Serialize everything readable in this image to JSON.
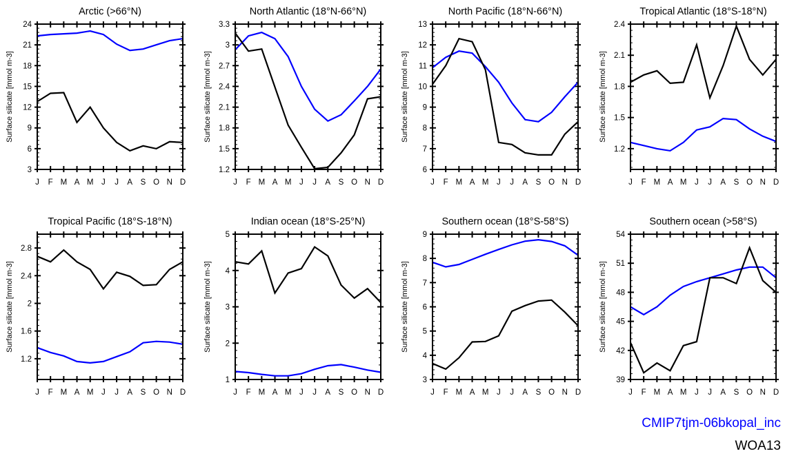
{
  "figure": {
    "ylabel": "Surface silicate [mmol m-3]",
    "months": [
      "J",
      "F",
      "M",
      "A",
      "M",
      "J",
      "J",
      "A",
      "S",
      "O",
      "N",
      "D"
    ],
    "legend": [
      {
        "label": "CMIP7tjm-06bkopal_inc",
        "color": "#0000ff"
      },
      {
        "label": "WOA13",
        "color": "#000000"
      }
    ]
  },
  "chart_data": [
    {
      "type": "line",
      "title": "Arctic (>66°N)",
      "xlabel": "",
      "ylabel": "Surface silicate [mmol m-3]",
      "categories": [
        "J",
        "F",
        "M",
        "A",
        "M",
        "J",
        "J",
        "A",
        "S",
        "O",
        "N",
        "D"
      ],
      "ylim": [
        3,
        24
      ],
      "yticks": [
        3,
        6,
        9,
        12,
        15,
        18,
        21,
        24
      ],
      "ytick_labels": [
        "3",
        "6",
        "9",
        "12",
        "15",
        "18",
        "21",
        "24"
      ],
      "series": [
        {
          "name": "CMIP7tjm-06bkopal_inc",
          "color": "#0000ff",
          "values": [
            22.3,
            22.5,
            22.6,
            22.7,
            23.0,
            22.5,
            21.1,
            20.2,
            20.4,
            21.0,
            21.6,
            21.9
          ]
        },
        {
          "name": "WOA13",
          "color": "#000000",
          "values": [
            12.8,
            14.0,
            14.1,
            9.8,
            12.0,
            9.0,
            6.9,
            5.7,
            6.4,
            6.0,
            7.0,
            6.9
          ]
        }
      ]
    },
    {
      "type": "line",
      "title": "North Atlantic (18°N-66°N)",
      "xlabel": "",
      "ylabel": "Surface silicate [mmol m-3]",
      "categories": [
        "J",
        "F",
        "M",
        "A",
        "M",
        "J",
        "J",
        "A",
        "S",
        "O",
        "N",
        "D"
      ],
      "ylim": [
        1.2,
        3.3
      ],
      "yticks": [
        1.2,
        1.5,
        1.8,
        2.1,
        2.4,
        2.7,
        3.0,
        3.3
      ],
      "ytick_labels": [
        "1.2",
        "1.5",
        "1.8",
        "2.1",
        "2.4",
        "2.7",
        "3",
        "3.3"
      ],
      "series": [
        {
          "name": "CMIP7tjm-06bkopal_inc",
          "color": "#0000ff",
          "values": [
            2.93,
            3.13,
            3.18,
            3.09,
            2.83,
            2.4,
            2.07,
            1.9,
            1.99,
            2.19,
            2.4,
            2.65
          ]
        },
        {
          "name": "WOA13",
          "color": "#000000",
          "values": [
            3.17,
            2.91,
            2.94,
            2.39,
            1.84,
            1.52,
            1.21,
            1.23,
            1.44,
            1.7,
            2.22,
            2.25
          ]
        }
      ]
    },
    {
      "type": "line",
      "title": "North Pacific (18°N-66°N)",
      "xlabel": "",
      "ylabel": "Surface silicate [mmol m-3]",
      "categories": [
        "J",
        "F",
        "M",
        "A",
        "M",
        "J",
        "J",
        "A",
        "S",
        "O",
        "N",
        "D"
      ],
      "ylim": [
        6,
        13
      ],
      "yticks": [
        6,
        7,
        8,
        9,
        10,
        11,
        12,
        13
      ],
      "ytick_labels": [
        "6",
        "7",
        "8",
        "9",
        "10",
        "11",
        "12",
        "13"
      ],
      "series": [
        {
          "name": "CMIP7tjm-06bkopal_inc",
          "color": "#0000ff",
          "values": [
            10.9,
            11.4,
            11.7,
            11.6,
            10.95,
            10.2,
            9.2,
            8.4,
            8.3,
            8.75,
            9.5,
            10.2
          ]
        },
        {
          "name": "WOA13",
          "color": "#000000",
          "values": [
            10.1,
            11.0,
            12.3,
            12.15,
            10.8,
            7.3,
            7.2,
            6.8,
            6.7,
            6.7,
            7.7,
            8.3
          ]
        }
      ]
    },
    {
      "type": "line",
      "title": "Tropical Atlantic (18°S-18°N)",
      "xlabel": "",
      "ylabel": "Surface silicate [mmol m-3]",
      "categories": [
        "J",
        "F",
        "M",
        "A",
        "M",
        "J",
        "J",
        "A",
        "S",
        "O",
        "N",
        "D"
      ],
      "ylim": [
        1.0,
        2.4
      ],
      "yticks": [
        1.2,
        1.5,
        1.8,
        2.1,
        2.4
      ],
      "ytick_labels": [
        "1.2",
        "1.5",
        "1.8",
        "2.1",
        "2.4"
      ],
      "series": [
        {
          "name": "CMIP7tjm-06bkopal_inc",
          "color": "#0000ff",
          "values": [
            1.26,
            1.23,
            1.2,
            1.18,
            1.26,
            1.38,
            1.41,
            1.49,
            1.48,
            1.39,
            1.32,
            1.27
          ]
        },
        {
          "name": "WOA13",
          "color": "#000000",
          "values": [
            1.84,
            1.91,
            1.95,
            1.83,
            1.84,
            2.2,
            1.69,
            2.0,
            2.38,
            2.06,
            1.91,
            2.06
          ]
        }
      ]
    },
    {
      "type": "line",
      "title": "Tropical Pacific (18°S-18°N)",
      "xlabel": "",
      "ylabel": "Surface silicate [mmol m-3]",
      "categories": [
        "J",
        "F",
        "M",
        "A",
        "M",
        "J",
        "J",
        "A",
        "S",
        "O",
        "N",
        "D"
      ],
      "ylim": [
        0.9,
        3.0
      ],
      "yticks": [
        1.2,
        1.6,
        2.0,
        2.4,
        2.8
      ],
      "ytick_labels": [
        "1.2",
        "1.6",
        "2",
        "2.4",
        "2.8"
      ],
      "series": [
        {
          "name": "CMIP7tjm-06bkopal_inc",
          "color": "#0000ff",
          "values": [
            1.36,
            1.29,
            1.24,
            1.16,
            1.14,
            1.16,
            1.23,
            1.3,
            1.43,
            1.45,
            1.44,
            1.41
          ]
        },
        {
          "name": "WOA13",
          "color": "#000000",
          "values": [
            2.68,
            2.6,
            2.77,
            2.6,
            2.49,
            2.21,
            2.45,
            2.39,
            2.26,
            2.27,
            2.49,
            2.6
          ]
        }
      ]
    },
    {
      "type": "line",
      "title": "Indian ocean (18°S-25°N)",
      "xlabel": "",
      "ylabel": "Surface silicate [mmol m-3]",
      "categories": [
        "J",
        "F",
        "M",
        "A",
        "M",
        "J",
        "J",
        "A",
        "S",
        "O",
        "N",
        "D"
      ],
      "ylim": [
        1,
        5
      ],
      "yticks": [
        1,
        2,
        3,
        4,
        5
      ],
      "ytick_labels": [
        "1",
        "2",
        "3",
        "4",
        "5"
      ],
      "series": [
        {
          "name": "CMIP7tjm-06bkopal_inc",
          "color": "#0000ff",
          "values": [
            1.22,
            1.19,
            1.14,
            1.1,
            1.1,
            1.16,
            1.28,
            1.38,
            1.41,
            1.34,
            1.26,
            1.2
          ]
        },
        {
          "name": "WOA13",
          "color": "#000000",
          "values": [
            4.24,
            4.18,
            4.54,
            3.38,
            3.93,
            4.05,
            4.65,
            4.4,
            3.6,
            3.24,
            3.5,
            3.12
          ]
        }
      ]
    },
    {
      "type": "line",
      "title": "Southern ocean (18°S-58°S)",
      "xlabel": "",
      "ylabel": "Surface silicate [mmol m-3]",
      "categories": [
        "J",
        "F",
        "M",
        "A",
        "M",
        "J",
        "J",
        "A",
        "S",
        "O",
        "N",
        "D"
      ],
      "ylim": [
        3,
        9
      ],
      "yticks": [
        3,
        4,
        5,
        6,
        7,
        8,
        9
      ],
      "ytick_labels": [
        "3",
        "4",
        "5",
        "6",
        "7",
        "8",
        "9"
      ],
      "series": [
        {
          "name": "CMIP7tjm-06bkopal_inc",
          "color": "#0000ff",
          "values": [
            7.84,
            7.65,
            7.75,
            7.96,
            8.17,
            8.37,
            8.56,
            8.71,
            8.77,
            8.7,
            8.52,
            8.13
          ]
        },
        {
          "name": "WOA13",
          "color": "#000000",
          "values": [
            3.66,
            3.43,
            3.9,
            4.55,
            4.57,
            4.8,
            5.82,
            6.05,
            6.24,
            6.28,
            5.78,
            5.22
          ]
        }
      ]
    },
    {
      "type": "line",
      "title": "Southern ocean (>58°S)",
      "xlabel": "",
      "ylabel": "Surface silicate [mmol m-3]",
      "categories": [
        "J",
        "F",
        "M",
        "A",
        "M",
        "J",
        "J",
        "A",
        "S",
        "O",
        "N",
        "D"
      ],
      "ylim": [
        39,
        54
      ],
      "yticks": [
        39,
        42,
        45,
        48,
        51,
        54
      ],
      "ytick_labels": [
        "39",
        "42",
        "45",
        "48",
        "51",
        "54"
      ],
      "series": [
        {
          "name": "CMIP7tjm-06bkopal_inc",
          "color": "#0000ff",
          "values": [
            46.5,
            45.7,
            46.5,
            47.7,
            48.6,
            49.1,
            49.5,
            49.9,
            50.3,
            50.6,
            50.6,
            49.5
          ]
        },
        {
          "name": "WOA13",
          "color": "#000000",
          "values": [
            42.8,
            39.7,
            40.7,
            39.9,
            42.5,
            42.9,
            49.5,
            49.5,
            48.9,
            52.6,
            49.2,
            48.0
          ]
        }
      ]
    }
  ]
}
